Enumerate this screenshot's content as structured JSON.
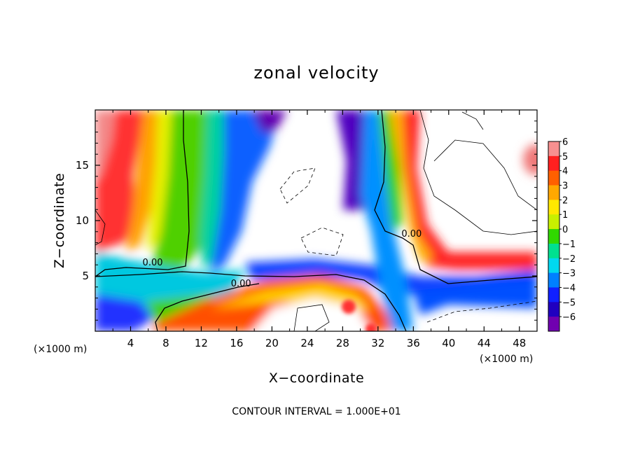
{
  "chart_data": {
    "type": "heatmap",
    "title": "zonal velocity",
    "xlabel": "X−coordinate",
    "ylabel": "Z−coordinate",
    "x_unit_left": "(×1000 m)",
    "x_unit_right": "(×1000 m)",
    "xlim": [
      0,
      50
    ],
    "ylim": [
      0,
      20
    ],
    "x_ticks": [
      4,
      8,
      12,
      16,
      20,
      24,
      28,
      32,
      36,
      40,
      44,
      48
    ],
    "x_tick_labels": [
      "4",
      "8",
      "12",
      "16",
      "20",
      "24",
      "28",
      "32",
      "36",
      "40",
      "44",
      "48"
    ],
    "y_ticks": [
      5,
      10,
      15
    ],
    "y_tick_labels": [
      "5",
      "10",
      "15"
    ],
    "colorbar": {
      "levels": [
        6,
        5,
        4,
        3,
        2,
        1,
        0,
        -1,
        -2,
        -3,
        -4,
        -5,
        -6
      ],
      "labels": [
        "6",
        "5",
        "4",
        "3",
        "2",
        "1",
        "0",
        "−1",
        "−2",
        "−3",
        "−4",
        "−5",
        "−6"
      ],
      "colors": [
        "#f79090",
        "#ff2020",
        "#ff6000",
        "#ffa800",
        "#ffe800",
        "#c8f000",
        "#30d800",
        "#00e090",
        "#00d8f0",
        "#0080ff",
        "#1020ff",
        "#2000c0",
        "#7000b0"
      ]
    },
    "contour_labels": [
      {
        "text": "0.00",
        "x": 6.5,
        "y": 6.2
      },
      {
        "text": "0.00",
        "x": 16.5,
        "y": 4.3
      },
      {
        "text": "0.00",
        "x": 35.8,
        "y": 8.8
      }
    ],
    "contour_interval_text": "CONTOUR INTERVAL = 1.000E+01",
    "grid": false
  }
}
